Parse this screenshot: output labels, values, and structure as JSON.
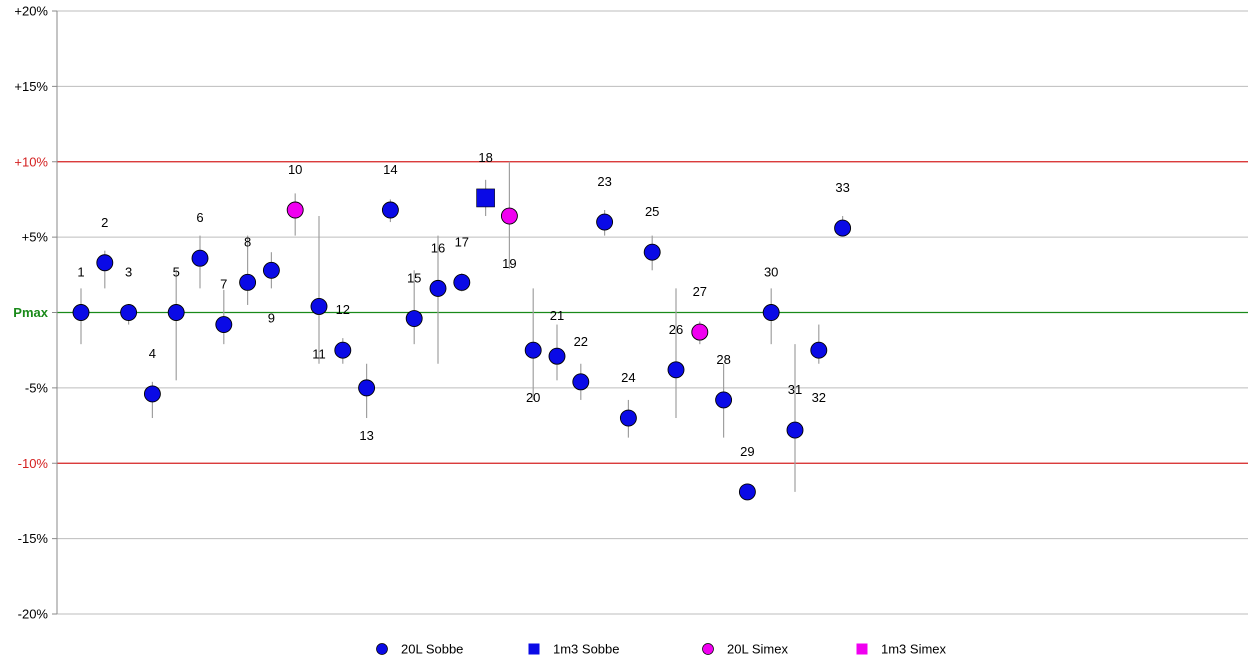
{
  "chart_data": {
    "type": "scatter",
    "y_tick_labels": [
      "+20%",
      "+15%",
      "+10%",
      "+5%",
      "Pmax",
      "-5%",
      "-10%",
      "-15%",
      "-20%"
    ],
    "ylim": [
      -20,
      20
    ],
    "reference_lines": [
      {
        "y": 10,
        "color": "#d42020"
      },
      {
        "y": 0,
        "color": "#1a8a1a"
      },
      {
        "y": -10,
        "color": "#d42020"
      }
    ],
    "colors": {
      "20L Sobbe": "#0a0ae6",
      "1m3 Sobbe": "#0a0ae6",
      "20L Simex": "#f000f0",
      "1m3 Simex": "#f000f0",
      "error_bar": "#a0a0a0",
      "grid": "#bdbdbd",
      "pmax_label": "#1a8a1a",
      "limit_label": "#d42020"
    },
    "legend": [
      {
        "label": "20L Sobbe",
        "marker": "circle"
      },
      {
        "label": "1m3 Sobbe",
        "marker": "square"
      },
      {
        "label": "20L Simex",
        "marker": "circle"
      },
      {
        "label": "1m3 Simex",
        "marker": "square"
      }
    ],
    "points": [
      {
        "label": "1",
        "series": "20L Sobbe",
        "y": 0.0,
        "lo": -2.1,
        "hi": 1.6,
        "label_pos": "above"
      },
      {
        "label": "2",
        "series": "20L Sobbe",
        "y": 3.3,
        "lo": 1.6,
        "hi": 4.1,
        "label_pos": "above"
      },
      {
        "label": "3",
        "series": "20L Sobbe",
        "y": 0.0,
        "lo": -0.8,
        "hi": 0.5,
        "label_pos": "above"
      },
      {
        "label": "4",
        "series": "20L Sobbe",
        "y": -5.4,
        "lo": -7.0,
        "hi": -4.6,
        "label_pos": "above"
      },
      {
        "label": "5",
        "series": "20L Sobbe",
        "y": 0.0,
        "lo": -4.5,
        "hi": 2.8,
        "label_pos": "above"
      },
      {
        "label": "6",
        "series": "20L Sobbe",
        "y": 3.6,
        "lo": 1.6,
        "hi": 5.1,
        "label_pos": "above"
      },
      {
        "label": "7",
        "series": "20L Sobbe",
        "y": -0.8,
        "lo": -2.1,
        "hi": 1.5,
        "label_pos": "above"
      },
      {
        "label": "8",
        "series": "20L Sobbe",
        "y": 2.0,
        "lo": 0.5,
        "hi": 5.1,
        "label_pos": "above"
      },
      {
        "label": "9",
        "series": "20L Sobbe",
        "y": 2.8,
        "lo": 1.6,
        "hi": 4.0,
        "label_pos": "below"
      },
      {
        "label": "10",
        "series": "20L Simex",
        "y": 6.8,
        "lo": 5.1,
        "hi": 7.9,
        "label_pos": "above"
      },
      {
        "label": "11",
        "series": "20L Sobbe",
        "y": 0.4,
        "lo": -3.4,
        "hi": 6.4,
        "label_pos": "below"
      },
      {
        "label": "12",
        "series": "20L Sobbe",
        "y": -2.5,
        "lo": -3.4,
        "hi": -1.7,
        "label_pos": "above"
      },
      {
        "label": "13",
        "series": "20L Sobbe",
        "y": -5.0,
        "lo": -7.0,
        "hi": -3.4,
        "label_pos": "below"
      },
      {
        "label": "14",
        "series": "20L Sobbe",
        "y": 6.8,
        "lo": 6.0,
        "hi": 7.5,
        "label_pos": "above"
      },
      {
        "label": "15",
        "series": "20L Sobbe",
        "y": -0.4,
        "lo": -2.1,
        "hi": 2.8,
        "label_pos": "above"
      },
      {
        "label": "16",
        "series": "20L Sobbe",
        "y": 1.6,
        "lo": -3.4,
        "hi": 5.1,
        "label_pos": "above"
      },
      {
        "label": "17",
        "series": "20L Sobbe",
        "y": 2.0,
        "lo": 1.4,
        "hi": 2.6,
        "label_pos": "above"
      },
      {
        "label": "18",
        "series": "1m3 Sobbe",
        "y": 7.6,
        "lo": 6.4,
        "hi": 8.8,
        "label_pos": "above"
      },
      {
        "label": "19",
        "series": "20L Simex",
        "y": 6.4,
        "lo": 2.9,
        "hi": 10.0,
        "label_pos": "below"
      },
      {
        "label": "20",
        "series": "20L Sobbe",
        "y": -2.5,
        "lo": -5.8,
        "hi": 1.6,
        "label_pos": "below"
      },
      {
        "label": "21",
        "series": "20L Sobbe",
        "y": -2.9,
        "lo": -4.5,
        "hi": -0.8,
        "label_pos": "above"
      },
      {
        "label": "22",
        "series": "20L Sobbe",
        "y": -4.6,
        "lo": -5.8,
        "hi": -3.4,
        "label_pos": "above"
      },
      {
        "label": "23",
        "series": "20L Sobbe",
        "y": 6.0,
        "lo": 5.1,
        "hi": 6.8,
        "label_pos": "above"
      },
      {
        "label": "24",
        "series": "20L Sobbe",
        "y": -7.0,
        "lo": -8.3,
        "hi": -5.8,
        "label_pos": "above"
      },
      {
        "label": "25",
        "series": "20L Sobbe",
        "y": 4.0,
        "lo": 2.8,
        "hi": 5.1,
        "label_pos": "above"
      },
      {
        "label": "26",
        "series": "20L Sobbe",
        "y": -3.8,
        "lo": -7.0,
        "hi": 1.6,
        "label_pos": "above"
      },
      {
        "label": "27",
        "series": "20L Simex",
        "y": -1.3,
        "lo": -2.1,
        "hi": -0.6,
        "label_pos": "above"
      },
      {
        "label": "28",
        "series": "20L Sobbe",
        "y": -5.8,
        "lo": -8.3,
        "hi": -3.4,
        "label_pos": "above"
      },
      {
        "label": "29",
        "series": "20L Sobbe",
        "y": -11.9,
        "lo": -12.4,
        "hi": -11.4,
        "label_pos": "above"
      },
      {
        "label": "30",
        "series": "20L Sobbe",
        "y": 0.0,
        "lo": -2.1,
        "hi": 1.6,
        "label_pos": "above"
      },
      {
        "label": "31",
        "series": "20L Sobbe",
        "y": -7.8,
        "lo": -11.9,
        "hi": -2.1,
        "label_pos": "above"
      },
      {
        "label": "32",
        "series": "20L Sobbe",
        "y": -2.5,
        "lo": -3.4,
        "hi": -0.8,
        "label_pos": "below"
      },
      {
        "label": "33",
        "series": "20L Sobbe",
        "y": 5.6,
        "lo": 5.1,
        "hi": 6.4,
        "label_pos": "above"
      }
    ]
  }
}
